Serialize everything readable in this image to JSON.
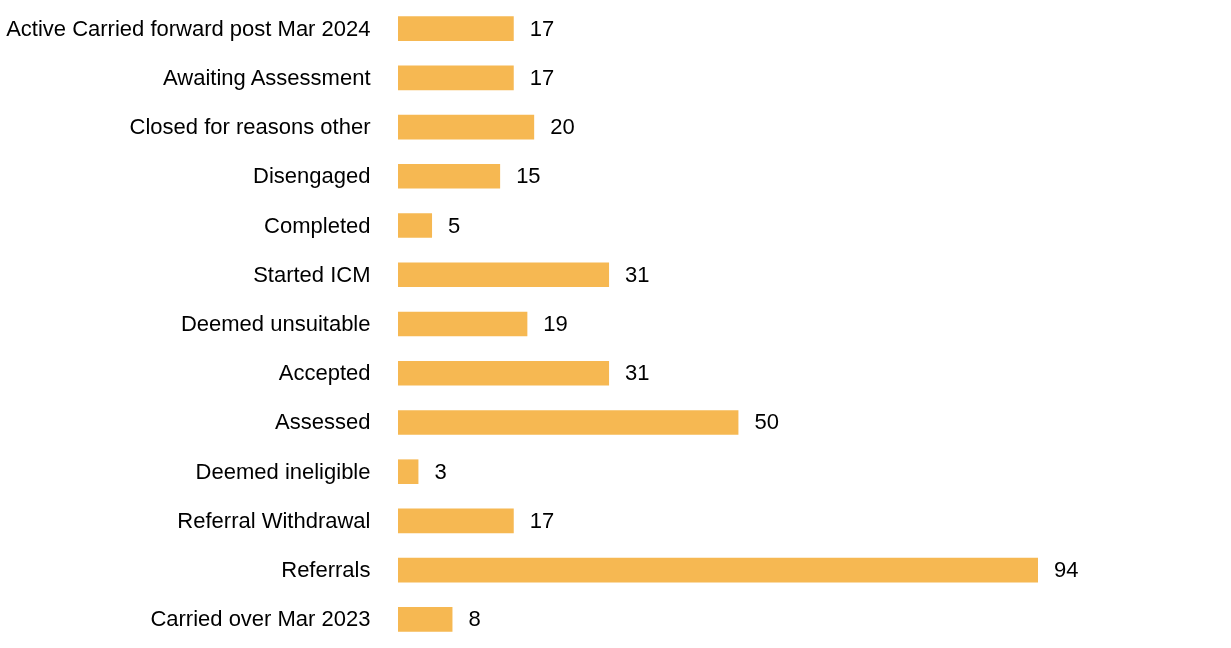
{
  "chart_data": {
    "type": "bar",
    "orientation": "horizontal",
    "categories": [
      "Active Carried forward post Mar 2024",
      "Awaiting Assessment",
      "Closed for reasons other",
      "Disengaged",
      "Completed",
      "Started ICM",
      "Deemed unsuitable",
      "Accepted",
      "Assessed",
      "Deemed ineligible",
      "Referral Withdrawal",
      "Referrals",
      "Carried over Mar 2023"
    ],
    "values": [
      17,
      17,
      20,
      15,
      5,
      31,
      19,
      31,
      50,
      3,
      17,
      94,
      8
    ],
    "color": "#f6b852",
    "data_labels": true,
    "tick_labels": "y",
    "grid": false
  }
}
